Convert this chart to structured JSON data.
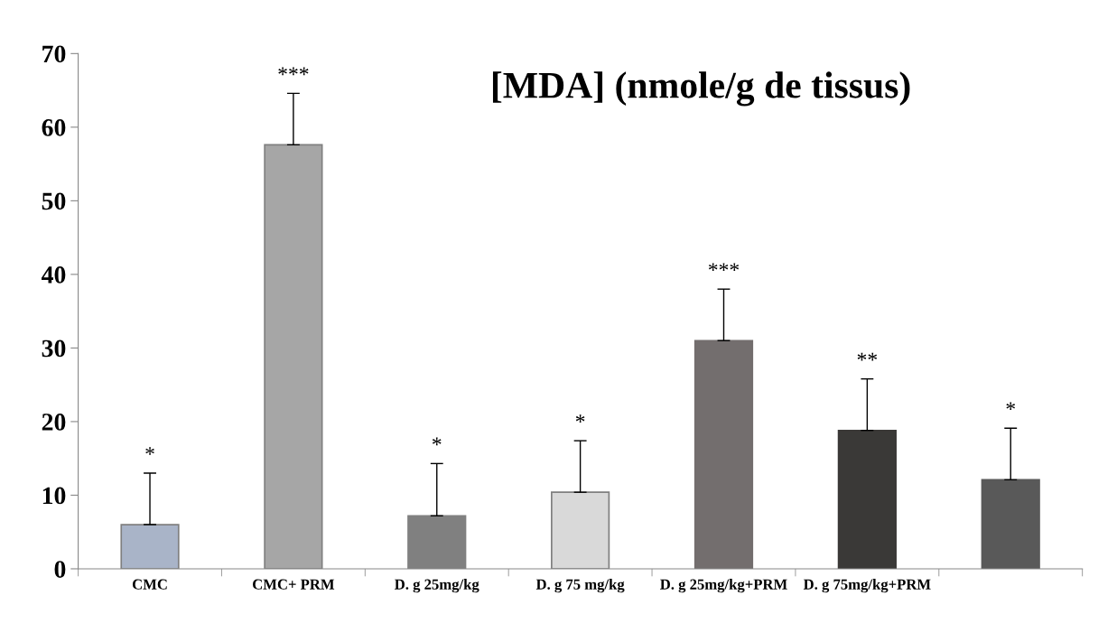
{
  "chart_data": {
    "type": "bar",
    "title": "[MDA] (nmole/g de tissus)",
    "categories": [
      "CMC",
      "CMC+ PRM",
      "D. g 25mg/kg",
      "D. g 75 mg/kg",
      "D. g 25mg/kg+PRM",
      "D. g 75mg/kg+PRM",
      null
    ],
    "values": [
      6,
      57.6,
      7.2,
      10.4,
      31,
      18.8,
      12.1
    ],
    "colors": [
      "#a9b4c8",
      "#a6a6a6",
      "#808080",
      "#d9d9d9",
      "#736e6e",
      "#3a3937",
      "#595959"
    ],
    "errors": [
      [
        6,
        13
      ],
      [
        57.6,
        64.6
      ],
      [
        7.2,
        14.3
      ],
      [
        10.4,
        17.4
      ],
      [
        31,
        38
      ],
      [
        18.8,
        25.8
      ],
      [
        12.1,
        19.1
      ]
    ],
    "annotations": [
      "*",
      "***",
      "*",
      "*",
      "***",
      "**",
      "*"
    ],
    "ylim": [
      0,
      70
    ],
    "yticks": [
      0,
      10,
      20,
      30,
      40,
      50,
      60,
      70
    ],
    "grid": false,
    "legend": false
  }
}
